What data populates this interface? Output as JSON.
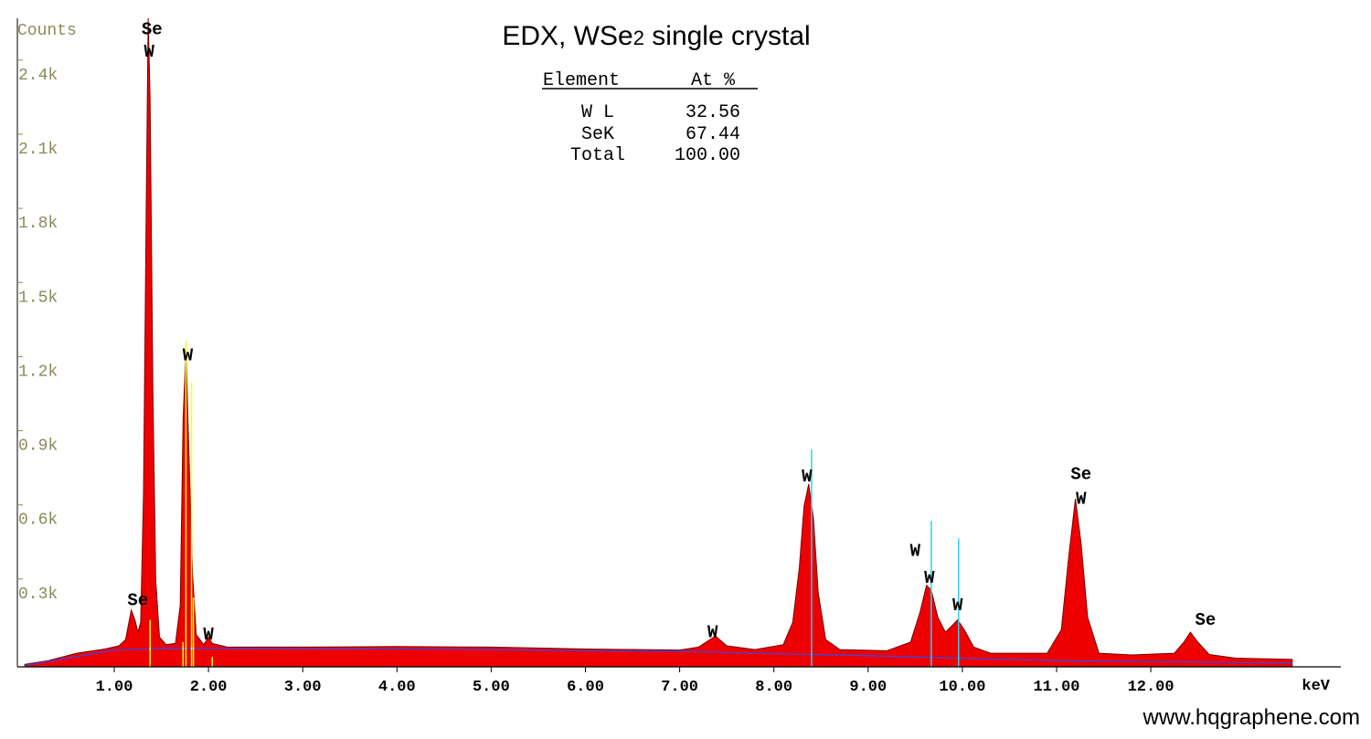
{
  "title": "EDX, WSe",
  "title_sub": "2",
  "title_tail": " single crystal",
  "watermark": "www.hqgraphene.com",
  "table": {
    "headers": [
      "Element",
      "At %"
    ],
    "rows": [
      [
        "W L",
        "32.56"
      ],
      [
        "SeK",
        "67.44"
      ],
      [
        "Total",
        "100.00"
      ]
    ]
  },
  "chart_data": {
    "type": "area",
    "title": "EDX, WSe2 single crystal",
    "xlabel": "keV",
    "ylabel": "Counts",
    "xlim": [
      0.05,
      13.5
    ],
    "ylim": [
      0,
      2700
    ],
    "x_ticks": [
      "1.00",
      "2.00",
      "3.00",
      "4.00",
      "5.00",
      "6.00",
      "7.00",
      "8.00",
      "9.00",
      "10.00",
      "11.00",
      "12.00"
    ],
    "y_ticks": [
      {
        "value": 300,
        "label": "0.3k"
      },
      {
        "value": 600,
        "label": "0.6k"
      },
      {
        "value": 900,
        "label": "0.9k"
      },
      {
        "value": 1200,
        "label": "1.2k"
      },
      {
        "value": 1500,
        "label": "1.5k"
      },
      {
        "value": 1800,
        "label": "1.8k"
      },
      {
        "value": 2100,
        "label": "2.1k"
      },
      {
        "value": 2400,
        "label": "2.4k"
      }
    ],
    "colors": {
      "spectrum": "#ee0000",
      "outline": "#7a0000",
      "background": "#4444dd",
      "marker_yellow": "#ffff00",
      "marker_cyan": "#33ccee",
      "axis_text": "#8a8a5a"
    },
    "spectrum_points": [
      [
        0.05,
        10
      ],
      [
        0.3,
        25
      ],
      [
        0.6,
        55
      ],
      [
        0.9,
        72
      ],
      [
        1.05,
        85
      ],
      [
        1.12,
        110
      ],
      [
        1.18,
        230
      ],
      [
        1.22,
        190
      ],
      [
        1.25,
        140
      ],
      [
        1.28,
        180
      ],
      [
        1.31,
        700
      ],
      [
        1.34,
        1900
      ],
      [
        1.36,
        2700
      ],
      [
        1.38,
        2300
      ],
      [
        1.41,
        1100
      ],
      [
        1.44,
        350
      ],
      [
        1.48,
        120
      ],
      [
        1.55,
        90
      ],
      [
        1.65,
        95
      ],
      [
        1.7,
        250
      ],
      [
        1.73,
        1000
      ],
      [
        1.76,
        1280
      ],
      [
        1.79,
        900
      ],
      [
        1.83,
        380
      ],
      [
        1.87,
        130
      ],
      [
        1.95,
        90
      ],
      [
        2.0,
        120
      ],
      [
        2.04,
        95
      ],
      [
        2.2,
        80
      ],
      [
        3.0,
        80
      ],
      [
        4.0,
        82
      ],
      [
        5.0,
        80
      ],
      [
        6.0,
        72
      ],
      [
        7.0,
        68
      ],
      [
        7.2,
        80
      ],
      [
        7.38,
        125
      ],
      [
        7.5,
        85
      ],
      [
        7.8,
        70
      ],
      [
        8.1,
        90
      ],
      [
        8.2,
        180
      ],
      [
        8.27,
        400
      ],
      [
        8.32,
        650
      ],
      [
        8.37,
        740
      ],
      [
        8.42,
        600
      ],
      [
        8.47,
        300
      ],
      [
        8.55,
        110
      ],
      [
        8.7,
        70
      ],
      [
        9.2,
        65
      ],
      [
        9.45,
        100
      ],
      [
        9.55,
        220
      ],
      [
        9.62,
        330
      ],
      [
        9.67,
        310
      ],
      [
        9.74,
        200
      ],
      [
        9.82,
        140
      ],
      [
        9.9,
        170
      ],
      [
        9.95,
        190
      ],
      [
        10.02,
        150
      ],
      [
        10.12,
        80
      ],
      [
        10.3,
        55
      ],
      [
        10.9,
        55
      ],
      [
        11.05,
        150
      ],
      [
        11.13,
        450
      ],
      [
        11.2,
        680
      ],
      [
        11.26,
        500
      ],
      [
        11.33,
        200
      ],
      [
        11.45,
        55
      ],
      [
        11.8,
        48
      ],
      [
        12.25,
        55
      ],
      [
        12.35,
        100
      ],
      [
        12.42,
        140
      ],
      [
        12.5,
        100
      ],
      [
        12.62,
        50
      ],
      [
        12.9,
        35
      ],
      [
        13.5,
        30
      ]
    ],
    "background_points": [
      [
        0.05,
        5
      ],
      [
        1.0,
        68
      ],
      [
        1.5,
        75
      ],
      [
        4.0,
        72
      ],
      [
        7.0,
        62
      ],
      [
        9.0,
        45
      ],
      [
        11.0,
        25
      ],
      [
        13.5,
        15
      ]
    ],
    "marker_lines": [
      {
        "x": 1.38,
        "y": 190,
        "color": "yellow"
      },
      {
        "x": 1.76,
        "y": 1320,
        "color": "yellow"
      },
      {
        "x": 1.82,
        "y": 1150,
        "color": "yellow"
      },
      {
        "x": 1.84,
        "y": 280,
        "color": "yellow"
      },
      {
        "x": 1.73,
        "y": 100,
        "color": "yellow"
      },
      {
        "x": 2.04,
        "y": 40,
        "color": "yellow"
      },
      {
        "x": 8.4,
        "y": 880,
        "color": "cyan"
      },
      {
        "x": 9.67,
        "y": 590,
        "color": "cyan"
      },
      {
        "x": 9.96,
        "y": 520,
        "color": "cyan"
      }
    ],
    "peak_labels": [
      {
        "text": "Se",
        "x": 1.4,
        "y": 2560
      },
      {
        "text": "W",
        "x": 1.37,
        "y": 2470
      },
      {
        "text": "Se",
        "x": 1.25,
        "y": 250
      },
      {
        "text": "W",
        "x": 1.78,
        "y": 1240
      },
      {
        "text": "W",
        "x": 2.0,
        "y": 110
      },
      {
        "text": "W",
        "x": 7.35,
        "y": 120
      },
      {
        "text": "W",
        "x": 8.35,
        "y": 750
      },
      {
        "text": "W",
        "x": 9.5,
        "y": 450
      },
      {
        "text": "W",
        "x": 9.65,
        "y": 340
      },
      {
        "text": "W",
        "x": 9.95,
        "y": 230
      },
      {
        "text": "Se",
        "x": 11.26,
        "y": 760
      },
      {
        "text": "W",
        "x": 11.26,
        "y": 660
      },
      {
        "text": "Se",
        "x": 12.58,
        "y": 170
      }
    ]
  }
}
